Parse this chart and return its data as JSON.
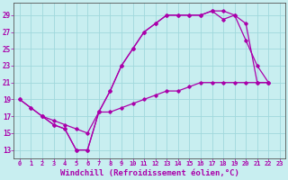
{
  "bg_color": "#c8eef0",
  "line_color": "#aa00aa",
  "grid_color": "#a0d8dc",
  "xlabel": "Windchill (Refroidissement éolien,°C)",
  "xlabel_fontsize": 6.5,
  "tick_fontsize": 6,
  "xlim": [
    -0.5,
    23.5
  ],
  "ylim": [
    12,
    30.5
  ],
  "yticks": [
    13,
    15,
    17,
    19,
    21,
    23,
    25,
    27,
    29
  ],
  "xticks": [
    0,
    1,
    2,
    3,
    4,
    5,
    6,
    7,
    8,
    9,
    10,
    11,
    12,
    13,
    14,
    15,
    16,
    17,
    18,
    19,
    20,
    21,
    22,
    23
  ],
  "line1_x": [
    0,
    1,
    2,
    3,
    4,
    5,
    6,
    7,
    8,
    9,
    10,
    11,
    12,
    13,
    14,
    15,
    16,
    17,
    18,
    19,
    20,
    21,
    22
  ],
  "line1_y": [
    19,
    18,
    17,
    16,
    15.5,
    13,
    13,
    17.5,
    20,
    23,
    25,
    27,
    28,
    29,
    29,
    29,
    29,
    29.5,
    29.5,
    29,
    26,
    23,
    21
  ],
  "line2_x": [
    0,
    1,
    2,
    3,
    4,
    5,
    6,
    7,
    8,
    9,
    10,
    11,
    12,
    13,
    14,
    15,
    16,
    17,
    18,
    19,
    20,
    21,
    22
  ],
  "line2_y": [
    19,
    18,
    17,
    16,
    15.5,
    13,
    13,
    17.5,
    20,
    23,
    25,
    27,
    28,
    29,
    29,
    29,
    29,
    29.5,
    28.5,
    29,
    28,
    21,
    21
  ],
  "line3_x": [
    2,
    3,
    4,
    5,
    6,
    7,
    8,
    9,
    10,
    11,
    12,
    13,
    14,
    15,
    16,
    17,
    18,
    19,
    20,
    21,
    22
  ],
  "line3_y": [
    17,
    16.5,
    16,
    15.5,
    15,
    17.5,
    17.5,
    18,
    18.5,
    19,
    19.5,
    20,
    20,
    20.5,
    21,
    21,
    21,
    21,
    21,
    21,
    21
  ]
}
